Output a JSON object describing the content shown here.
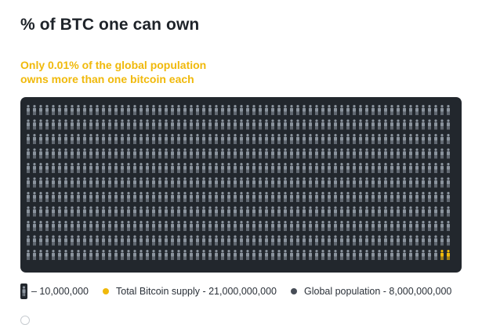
{
  "title": "% of BTC one can own",
  "subtitle_lines": [
    "Only 0.01% of the global population",
    "owns more than one bitcoin each"
  ],
  "legend": {
    "unit_label": "– 10,000,000",
    "supply_label": "Total Bitcoin supply - 21,000,000,000",
    "population_label": "Global population - 8,000,000,000"
  },
  "colors": {
    "accent": "#f0b90b",
    "panel": "#22272d",
    "person": "#8b949e",
    "population_dot": "#474d57"
  },
  "icons": {
    "person": "person-icon",
    "population_marker": "circle-icon"
  },
  "chart_data": {
    "type": "pictogram",
    "title": "% of BTC one can own",
    "unit_per_icon": 10000000,
    "series": [
      {
        "name": "Total Bitcoin supply",
        "value": 21000000000,
        "color": "#f0b90b"
      },
      {
        "name": "Global population",
        "value": 8000000000,
        "color": "#474d57"
      }
    ],
    "highlighted_icons": 2,
    "grid": {
      "rows": 11,
      "columns": 68
    }
  }
}
